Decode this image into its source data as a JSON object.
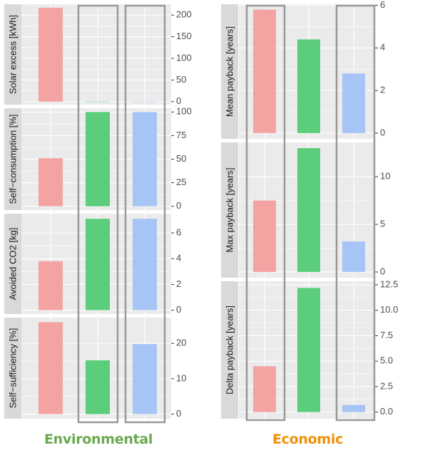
{
  "colors": {
    "series": [
      "#f4a3a3",
      "#5ccd7a",
      "#a6c4f5"
    ],
    "panel_bg": "#ebebeb",
    "strip_bg": "#d9d9d9",
    "grid": "#ffffff",
    "highlight_box": "#999999",
    "environmental_label": "#6aa84f",
    "economic_label": "#f0900a"
  },
  "groups": {
    "environmental": "Environmental",
    "economic": "Economic"
  },
  "chart_data": [
    {
      "type": "bar",
      "group": "environmental",
      "ylabel": "Solar excess [kWh]",
      "values": [
        217,
        0,
        0
      ],
      "ylim": [
        -7,
        225
      ],
      "ticks": [
        0,
        50,
        100,
        150,
        200
      ]
    },
    {
      "type": "bar",
      "group": "environmental",
      "ylabel": "Self−consumption [%]",
      "values": [
        51,
        100,
        100
      ],
      "ylim": [
        -4,
        104
      ],
      "ticks": [
        0,
        25,
        50,
        75,
        100
      ]
    },
    {
      "type": "bar",
      "group": "environmental",
      "ylabel": "Avoided CO2 [kg]",
      "values": [
        3.8,
        7.1,
        7.1
      ],
      "ylim": [
        -0.3,
        7.5
      ],
      "ticks": [
        0,
        2,
        4,
        6
      ]
    },
    {
      "type": "bar",
      "group": "environmental",
      "ylabel": "Self−sufficiency [%]",
      "values": [
        26,
        15.2,
        19.8
      ],
      "ylim": [
        -1.3,
        27.3
      ],
      "ticks": [
        0,
        10,
        20
      ]
    },
    {
      "type": "bar",
      "group": "economic",
      "ylabel": "Mean payback [years]",
      "values": [
        5.8,
        4.4,
        2.8
      ],
      "ylim": [
        -0.27,
        6.05
      ],
      "ticks": [
        0,
        2,
        4,
        6
      ]
    },
    {
      "type": "bar",
      "group": "economic",
      "ylabel": "Max payback [years]",
      "values": [
        7.5,
        13,
        3.2
      ],
      "ylim": [
        -0.6,
        13.6
      ],
      "ticks": [
        0,
        5,
        10
      ]
    },
    {
      "type": "bar",
      "group": "economic",
      "ylabel": "Delta payback [years]",
      "values": [
        4.5,
        12.2,
        0.7
      ],
      "ylim": [
        -0.65,
        12.85
      ],
      "ticks": [
        "0.0",
        "2.5",
        "5.0",
        "7.5",
        "10.0",
        "12.5"
      ]
    }
  ]
}
